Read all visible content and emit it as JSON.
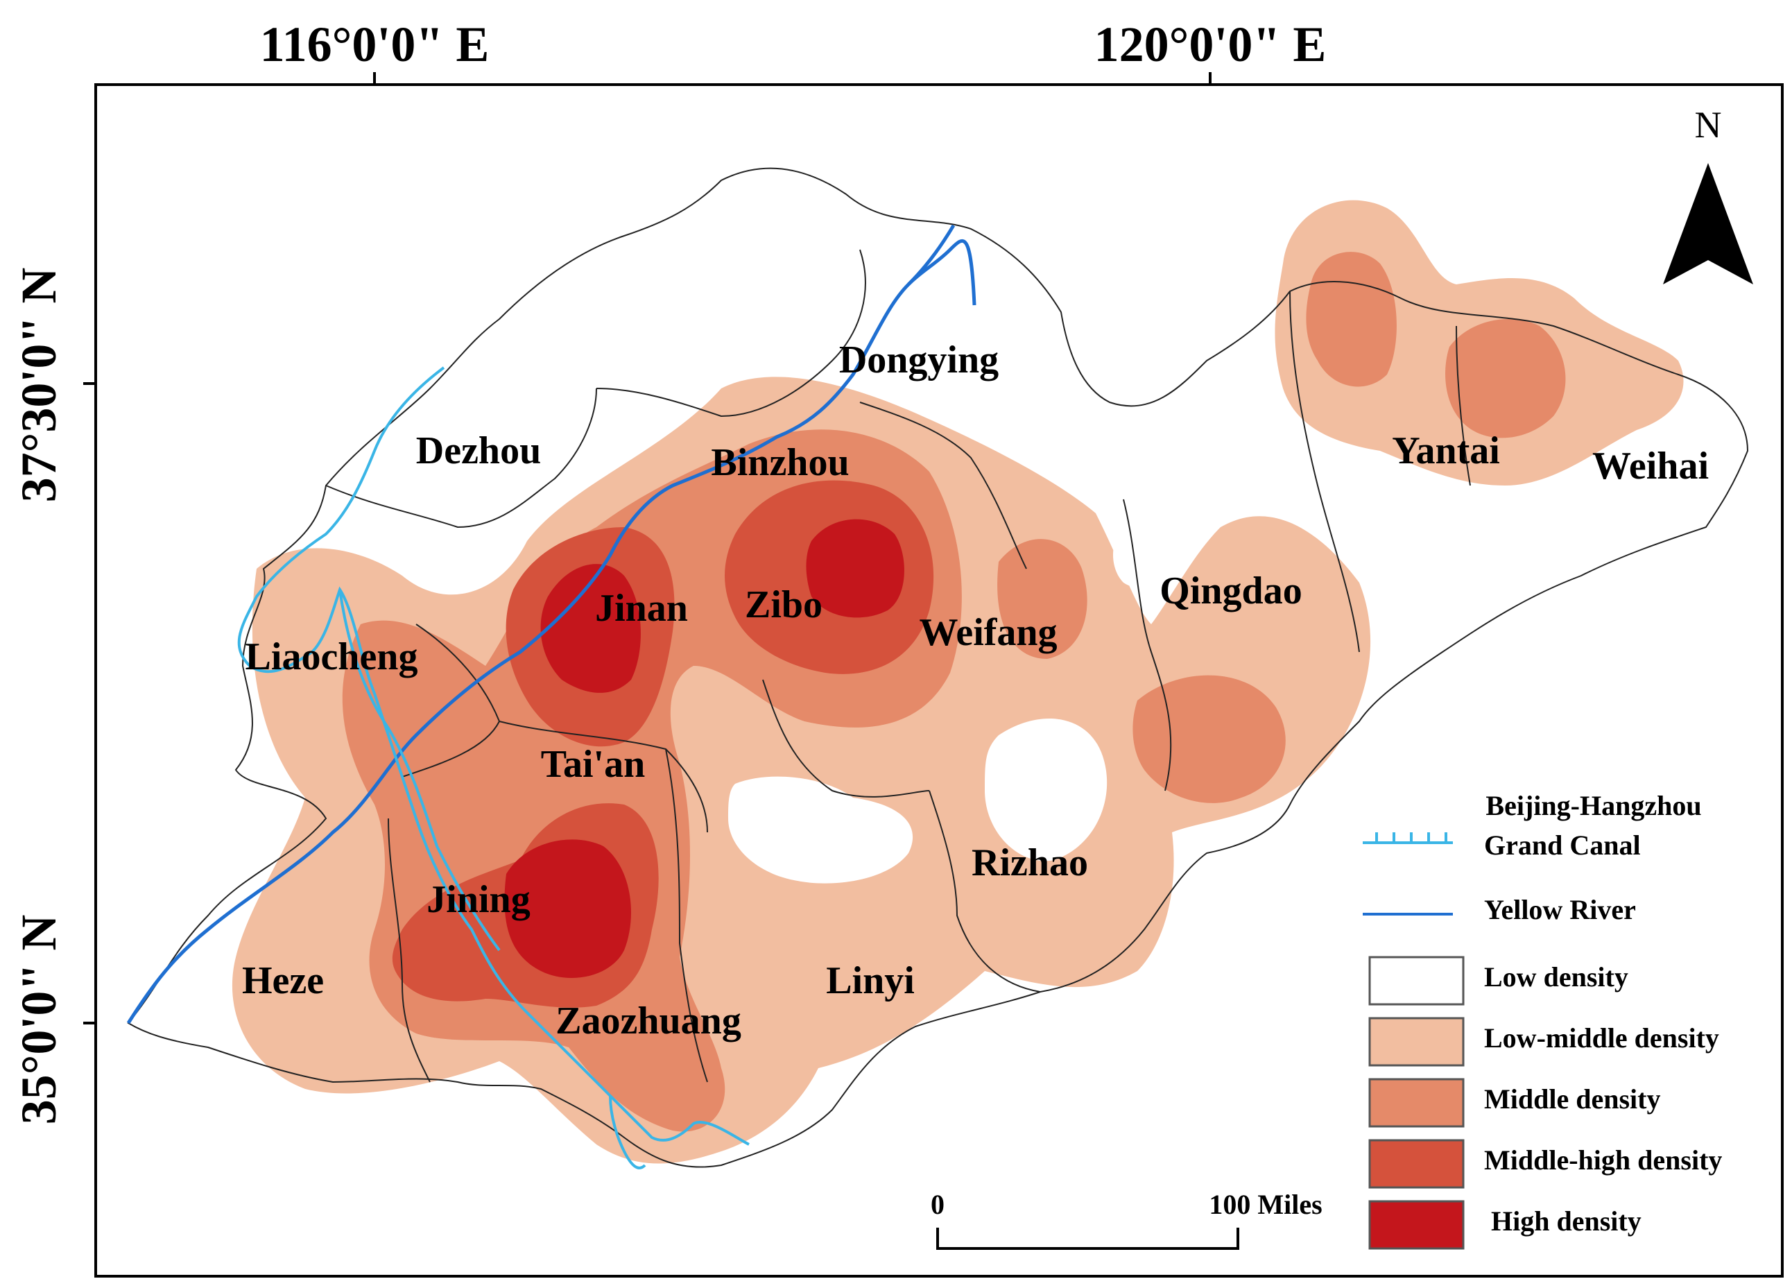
{
  "coordinates": {
    "lon_left": "116°0'0\" E",
    "lon_right": "120°0'0\" E",
    "lat_top": "37°30'0\" N",
    "lat_bottom": "35°0'0\" N"
  },
  "north_arrow": {
    "label": "N",
    "icon": "north-arrow-icon"
  },
  "cities": {
    "dongying": "Dongying",
    "dezhou": "Dezhou",
    "binzhou": "Binzhou",
    "jinan": "Jinan",
    "zibo": "Zibo",
    "weifang": "Weifang",
    "qingdao": "Qingdao",
    "yantai": "Yantai",
    "weihai": "Weihai",
    "liaocheng": "Liaocheng",
    "taian": "Tai'an",
    "rizhao": "Rizhao",
    "jining": "Jining",
    "heze": "Heze",
    "linyi": "Linyi",
    "zaozhuang": "Zaozhuang"
  },
  "scale_bar": {
    "start": "0",
    "end": "100 Miles"
  },
  "legend": {
    "canal_line1": "Beijing-Hangzhou",
    "canal_line2": "Grand Canal",
    "river": "Yellow River",
    "classes": [
      {
        "label": "Low density",
        "color": "#ffffff"
      },
      {
        "label": "Low-middle density",
        "color": "#f2bea0"
      },
      {
        "label": "Middle density",
        "color": "#e58a69"
      },
      {
        "label": "Middle-high density",
        "color": "#d5523c"
      },
      {
        "label": "High density",
        "color": "#c4161c"
      }
    ]
  },
  "colors": {
    "canal": "#3ab5e6",
    "river": "#1f6fd1",
    "boundary": "#222222"
  }
}
